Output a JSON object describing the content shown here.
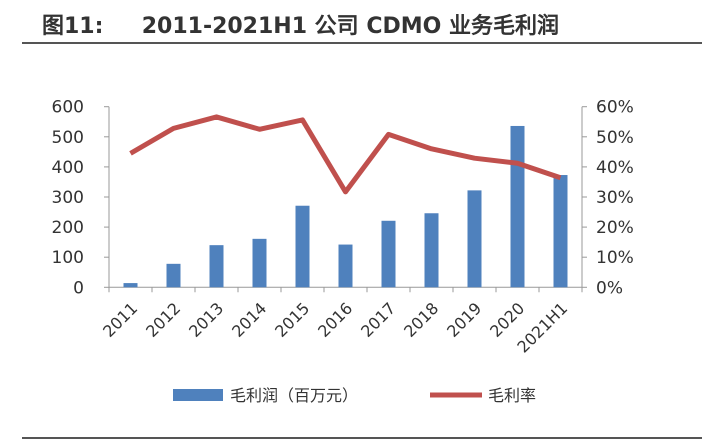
{
  "title": "图11:     2011-2021H1 公司 CDMO 业务毛利润",
  "chart_data": {
    "type": "bar+line",
    "categories": [
      "2011",
      "2012",
      "2013",
      "2014",
      "2015",
      "2016",
      "2017",
      "2018",
      "2019",
      "2020",
      "2021H1"
    ],
    "series": [
      {
        "name": "毛利润（百万元）",
        "type": "bar",
        "axis": "left",
        "color": "#4f81bd",
        "values": [
          14,
          78,
          140,
          161,
          271,
          142,
          221,
          246,
          322,
          536,
          373
        ]
      },
      {
        "name": "毛利率",
        "type": "line",
        "axis": "right",
        "color": "#c0504d",
        "values": [
          44.5,
          52.8,
          56.6,
          52.5,
          55.6,
          31.7,
          50.8,
          46.0,
          42.9,
          41.2,
          36.4
        ]
      }
    ],
    "yleft": {
      "ylim": [
        0,
        600
      ],
      "ticks": [
        "0",
        "100",
        "200",
        "300",
        "400",
        "500",
        "600"
      ]
    },
    "yright": {
      "ylim": [
        0,
        60
      ],
      "ticks": [
        "0%",
        "10%",
        "20%",
        "30%",
        "40%",
        "50%",
        "60%"
      ]
    },
    "grid": false,
    "legend": "bottom"
  }
}
